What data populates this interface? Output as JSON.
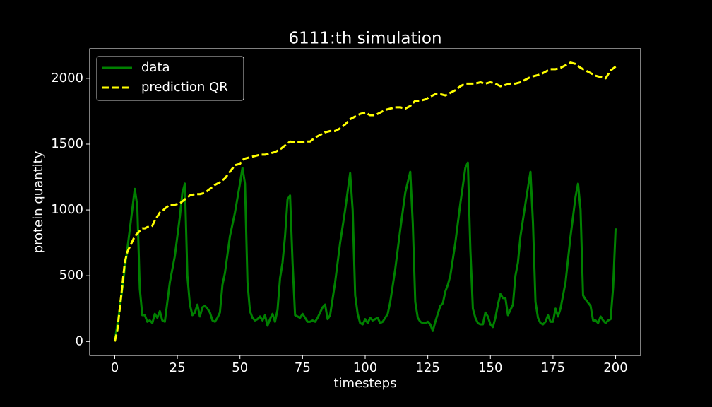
{
  "chart_data": {
    "type": "line",
    "title": "6111:th simulation",
    "xlabel": "timesteps",
    "ylabel": "protein quantity",
    "xlim": [
      -10,
      210
    ],
    "ylim": [
      -106,
      2225
    ],
    "xticks": [
      0,
      25,
      50,
      75,
      100,
      125,
      150,
      175,
      200
    ],
    "yticks": [
      0,
      500,
      1000,
      1500,
      2000
    ],
    "legend": "upper left",
    "series": [
      {
        "name": "data",
        "color": "#008000",
        "dash": false,
        "x": [
          0,
          2,
          4,
          6,
          8,
          9,
          10,
          11,
          12,
          13,
          14,
          15,
          16,
          17,
          18,
          19,
          20,
          22,
          24,
          26,
          27,
          28,
          29,
          30,
          31,
          32,
          33,
          34,
          35,
          36,
          37,
          38,
          39,
          40,
          41,
          42,
          43,
          44,
          46,
          48,
          50,
          51,
          52,
          53,
          54,
          55,
          56,
          57,
          58,
          59,
          60,
          61,
          62,
          63,
          64,
          65,
          66,
          67,
          68,
          69,
          70,
          71,
          72,
          73,
          74,
          75,
          76,
          77,
          78,
          79,
          80,
          81,
          82,
          83,
          84,
          85,
          86,
          88,
          90,
          92,
          94,
          95,
          96,
          97,
          98,
          99,
          100,
          101,
          102,
          103,
          104,
          105,
          106,
          107,
          108,
          109,
          110,
          112,
          114,
          116,
          118,
          119,
          120,
          121,
          122,
          123,
          124,
          125,
          126,
          127,
          128,
          130,
          131,
          132,
          133,
          134,
          136,
          138,
          140,
          141,
          142,
          143,
          144,
          145,
          146,
          147,
          148,
          149,
          150,
          151,
          152,
          153,
          154,
          155,
          156,
          157,
          158,
          159,
          160,
          161,
          162,
          164,
          166,
          167,
          168,
          169,
          170,
          171,
          172,
          173,
          174,
          175,
          176,
          177,
          178,
          180,
          182,
          184,
          185,
          186,
          187,
          188,
          190,
          191,
          192,
          193,
          194,
          195,
          196,
          197,
          198,
          199,
          200
        ],
        "values": [
          0,
          250,
          550,
          850,
          1160,
          1030,
          400,
          200,
          200,
          150,
          160,
          140,
          210,
          180,
          230,
          160,
          150,
          450,
          650,
          950,
          1130,
          1200,
          500,
          280,
          200,
          220,
          280,
          190,
          260,
          270,
          250,
          220,
          160,
          150,
          180,
          220,
          430,
          520,
          800,
          980,
          1200,
          1320,
          1200,
          450,
          230,
          180,
          160,
          170,
          190,
          160,
          200,
          120,
          170,
          210,
          150,
          240,
          480,
          600,
          800,
          1080,
          1110,
          600,
          200,
          190,
          180,
          210,
          180,
          150,
          150,
          160,
          150,
          180,
          220,
          260,
          280,
          170,
          200,
          450,
          750,
          1000,
          1280,
          1000,
          350,
          210,
          140,
          130,
          170,
          140,
          180,
          160,
          170,
          180,
          140,
          150,
          180,
          210,
          300,
          550,
          850,
          1130,
          1290,
          900,
          300,
          180,
          150,
          140,
          140,
          150,
          130,
          80,
          150,
          270,
          290,
          380,
          430,
          500,
          750,
          1050,
          1320,
          1360,
          700,
          250,
          180,
          140,
          130,
          130,
          220,
          190,
          130,
          110,
          180,
          280,
          360,
          330,
          330,
          200,
          240,
          280,
          500,
          600,
          800,
          1050,
          1290,
          900,
          300,
          180,
          140,
          130,
          150,
          200,
          150,
          150,
          250,
          190,
          250,
          450,
          800,
          1100,
          1200,
          1000,
          350,
          320,
          270,
          160,
          160,
          140,
          190,
          160,
          140,
          160,
          170,
          410,
          860
        ]
      },
      {
        "name": "prediction QR",
        "color": "#ffff00",
        "dash": true,
        "x": [
          0,
          1,
          2,
          3,
          4,
          5,
          6,
          7,
          8,
          9,
          10,
          11,
          12,
          13,
          14,
          15,
          16,
          17,
          18,
          19,
          20,
          22,
          24,
          26,
          28,
          30,
          32,
          34,
          36,
          38,
          40,
          42,
          44,
          46,
          48,
          50,
          51,
          52,
          54,
          56,
          58,
          60,
          62,
          64,
          66,
          68,
          70,
          72,
          74,
          76,
          78,
          80,
          82,
          84,
          86,
          88,
          90,
          92,
          94,
          96,
          98,
          100,
          102,
          104,
          106,
          108,
          110,
          112,
          114,
          116,
          118,
          120,
          122,
          124,
          126,
          128,
          130,
          132,
          134,
          136,
          138,
          140,
          142,
          144,
          146,
          148,
          150,
          152,
          154,
          156,
          158,
          160,
          162,
          164,
          166,
          168,
          170,
          172,
          174,
          176,
          178,
          180,
          182,
          184,
          186,
          188,
          190,
          192,
          194,
          196,
          198,
          200
        ],
        "values": [
          0,
          80,
          250,
          420,
          600,
          680,
          720,
          760,
          800,
          820,
          840,
          860,
          860,
          870,
          870,
          880,
          920,
          950,
          980,
          990,
          1010,
          1040,
          1040,
          1050,
          1080,
          1110,
          1120,
          1120,
          1130,
          1160,
          1190,
          1210,
          1240,
          1290,
          1340,
          1350,
          1380,
          1390,
          1400,
          1410,
          1420,
          1420,
          1430,
          1440,
          1460,
          1490,
          1520,
          1515,
          1515,
          1520,
          1520,
          1550,
          1570,
          1590,
          1600,
          1600,
          1620,
          1650,
          1690,
          1710,
          1730,
          1740,
          1720,
          1720,
          1740,
          1760,
          1770,
          1780,
          1780,
          1770,
          1790,
          1830,
          1830,
          1840,
          1860,
          1880,
          1880,
          1870,
          1890,
          1910,
          1940,
          1960,
          1960,
          1960,
          1970,
          1960,
          1970,
          1960,
          1940,
          1950,
          1960,
          1960,
          1970,
          1990,
          2010,
          2020,
          2030,
          2050,
          2070,
          2070,
          2080,
          2100,
          2120,
          2110,
          2080,
          2060,
          2040,
          2020,
          2010,
          2000,
          2060,
          2090
        ]
      }
    ]
  }
}
